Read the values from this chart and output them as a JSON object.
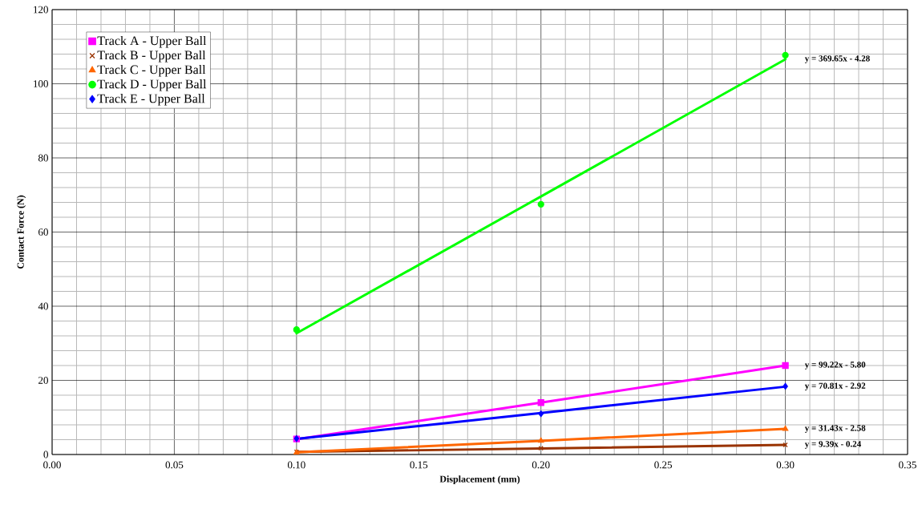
{
  "chart_data": {
    "type": "scatter",
    "xlabel": "Displacement (mm)",
    "ylabel": "Contact Force (N)",
    "xlim": [
      0,
      0.35
    ],
    "ylim": [
      0,
      120
    ],
    "xticks": [
      {
        "value": 0,
        "label": "0.00"
      },
      {
        "value": 0.05,
        "label": "0.05"
      },
      {
        "value": 0.1,
        "label": "0.10"
      },
      {
        "value": 0.15,
        "label": "0.15"
      },
      {
        "value": 0.2,
        "label": "0.20"
      },
      {
        "value": 0.25,
        "label": "0.25"
      },
      {
        "value": 0.3,
        "label": "0.30"
      },
      {
        "value": 0.35,
        "label": "0.35"
      }
    ],
    "yticks": [
      0,
      20,
      40,
      60,
      80,
      100,
      120
    ],
    "grid": true,
    "legend": "top left",
    "x": [
      0.1,
      0.2,
      0.3
    ],
    "series": [
      {
        "name": "Track A - Upper Ball",
        "color": "#ff00ff",
        "marker": "square",
        "values": [
          4.2,
          14.0,
          24.0
        ]
      },
      {
        "name": "Track B - Upper Ball",
        "color": "#993300",
        "marker": "cross",
        "values": [
          0.7,
          1.7,
          2.6
        ]
      },
      {
        "name": "Track C - Upper Ball",
        "color": "#ff6600",
        "marker": "triangle",
        "values": [
          0.5,
          3.7,
          6.9
        ]
      },
      {
        "name": "Track D - Upper Ball",
        "color": "#00ff00",
        "marker": "circle",
        "values": [
          33.7,
          67.5,
          107.7
        ]
      },
      {
        "name": "Track E - Upper Ball",
        "color": "#0000ff",
        "marker": "diamond",
        "values": [
          4.3,
          11.0,
          18.4
        ]
      },
      {
        "type": "line",
        "color": "#ff00ff",
        "marker": "none",
        "values": [
          4.1,
          14.0,
          24.0
        ]
      },
      {
        "type": "line",
        "color": "#993300",
        "marker": "none",
        "values": [
          0.7,
          1.6,
          2.6
        ]
      },
      {
        "type": "line",
        "color": "#ff6600",
        "marker": "none",
        "values": [
          0.6,
          3.7,
          6.9
        ]
      },
      {
        "type": "line",
        "color": "#00ff00",
        "marker": "none",
        "values": [
          32.7,
          69.6,
          106.6
        ]
      },
      {
        "type": "line",
        "color": "#0000ff",
        "marker": "none",
        "values": [
          4.2,
          11.2,
          18.3
        ]
      }
    ],
    "annotations": [
      "y = 99.22x - 5.80",
      "y = 9.39x - 0.24",
      "y = 31.43x - 2.58",
      "y = 369.65x - 4.28",
      "y = 70.81x - 2.92"
    ]
  }
}
